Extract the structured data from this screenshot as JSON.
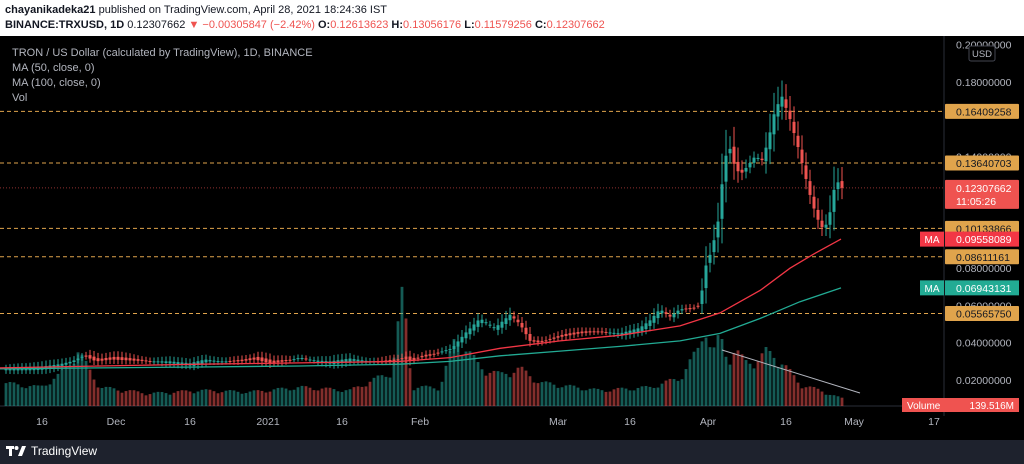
{
  "header": {
    "author": "chayanikadeka21",
    "published_text": "published on TradingView.com, April 28, 2021 18:24:36 IST",
    "symbol": "BINANCE:TRXUSD, 1D",
    "last": "0.12307662",
    "change_arrow": "▼",
    "change": "−0.00305847 (−2.42%)",
    "o_label": "O:",
    "o": "0.12613623",
    "h_label": "H:",
    "h": "0.13056176",
    "l_label": "L:",
    "l": "0.11579256",
    "c_label": "C:",
    "c": "0.12307662"
  },
  "legend": {
    "title": "TRON / US Dollar (calculated by TradingView), 1D, BINANCE",
    "ma50": "MA (50, close, 0)",
    "ma100": "MA (100, close, 0)",
    "vol": "Vol"
  },
  "footer": {
    "brand": "TradingView",
    "logo_icon": "tradingview-logo-icon"
  },
  "colors": {
    "up": "#26a69a",
    "down": "#ef5350",
    "ma50": "#f23645",
    "ma100": "#22ab94",
    "hline": "#e0a44c",
    "bg": "#000000",
    "axis_text": "#b2b5be",
    "trendline": "#b2b5be"
  },
  "chart_data": {
    "type": "candlestick",
    "price_scale": {
      "currency": "USD",
      "ticks": [
        "0.20000000",
        "0.18000000",
        "0.14000000",
        "0.10000000",
        "0.08000000",
        "0.06000000",
        "0.04000000",
        "0.02000000"
      ],
      "tick_values": [
        0.2,
        0.18,
        0.14,
        0.1,
        0.08,
        0.06,
        0.04,
        0.02
      ],
      "range": [
        0.0,
        0.2
      ]
    },
    "time_axis": [
      "16",
      "Dec",
      "16",
      "2021",
      "16",
      "Feb",
      "Mar",
      "16",
      "Apr",
      "16",
      "May",
      "17"
    ],
    "horizontal_levels": [
      {
        "label": "0.16409258",
        "value": 0.16409258
      },
      {
        "label": "0.13640703",
        "value": 0.13640703
      },
      {
        "label": "0.10133866",
        "value": 0.10133866
      },
      {
        "label": "0.08611161",
        "value": 0.08611161
      },
      {
        "label": "0.05565750",
        "value": 0.0556575
      }
    ],
    "last_price": {
      "label": "0.12307662",
      "countdown": "11:05:26",
      "value": 0.12307662
    },
    "ma_badges": [
      {
        "name": "MA",
        "label": "0.09558089",
        "value": 0.09558089
      },
      {
        "name": "MA",
        "label": "0.06943131",
        "value": 0.06943131
      }
    ],
    "volume_badge": {
      "name": "Volume",
      "label": "139.516M"
    },
    "close_anchors": [
      [
        0,
        0.0255
      ],
      [
        20,
        0.0265
      ],
      [
        40,
        0.027
      ],
      [
        60,
        0.0285
      ],
      [
        72,
        0.03
      ],
      [
        84,
        0.033
      ],
      [
        96,
        0.03
      ],
      [
        112,
        0.031
      ],
      [
        130,
        0.0305
      ],
      [
        150,
        0.03
      ],
      [
        170,
        0.03
      ],
      [
        190,
        0.029
      ],
      [
        205,
        0.031
      ],
      [
        220,
        0.03
      ],
      [
        240,
        0.03
      ],
      [
        255,
        0.031
      ],
      [
        270,
        0.029
      ],
      [
        285,
        0.03
      ],
      [
        300,
        0.032
      ],
      [
        315,
        0.0305
      ],
      [
        330,
        0.03
      ],
      [
        350,
        0.0315
      ],
      [
        370,
        0.03
      ],
      [
        385,
        0.03
      ],
      [
        395,
        0.03
      ],
      [
        404,
        0.0315
      ],
      [
        412,
        0.03
      ],
      [
        420,
        0.032
      ],
      [
        430,
        0.033
      ],
      [
        440,
        0.035
      ],
      [
        452,
        0.037
      ],
      [
        465,
        0.045
      ],
      [
        480,
        0.053
      ],
      [
        495,
        0.048
      ],
      [
        510,
        0.055
      ],
      [
        520,
        0.05
      ],
      [
        530,
        0.041
      ],
      [
        540,
        0.04
      ],
      [
        560,
        0.043
      ],
      [
        580,
        0.045
      ],
      [
        600,
        0.046
      ],
      [
        620,
        0.045
      ],
      [
        640,
        0.048
      ],
      [
        650,
        0.052
      ],
      [
        660,
        0.058
      ],
      [
        670,
        0.054
      ],
      [
        680,
        0.058
      ],
      [
        690,
        0.058
      ],
      [
        700,
        0.06
      ],
      [
        705,
        0.08
      ],
      [
        712,
        0.09
      ],
      [
        718,
        0.105
      ],
      [
        722,
        0.125
      ],
      [
        728,
        0.148
      ],
      [
        734,
        0.136
      ],
      [
        740,
        0.13
      ],
      [
        748,
        0.135
      ],
      [
        755,
        0.14
      ],
      [
        762,
        0.138
      ],
      [
        768,
        0.148
      ],
      [
        775,
        0.165
      ],
      [
        782,
        0.172
      ],
      [
        790,
        0.16
      ],
      [
        798,
        0.145
      ],
      [
        805,
        0.13
      ],
      [
        812,
        0.115
      ],
      [
        818,
        0.106
      ],
      [
        824,
        0.1
      ],
      [
        830,
        0.11
      ],
      [
        836,
        0.128
      ],
      [
        841,
        0.1231
      ]
    ],
    "ma50_anchors": [
      [
        0,
        0.0265
      ],
      [
        100,
        0.0275
      ],
      [
        200,
        0.0285
      ],
      [
        300,
        0.0292
      ],
      [
        400,
        0.03
      ],
      [
        450,
        0.032
      ],
      [
        500,
        0.037
      ],
      [
        560,
        0.041
      ],
      [
        620,
        0.044
      ],
      [
        680,
        0.049
      ],
      [
        720,
        0.056
      ],
      [
        760,
        0.068
      ],
      [
        790,
        0.08
      ],
      [
        815,
        0.088
      ],
      [
        841,
        0.0956
      ]
    ],
    "ma100_anchors": [
      [
        0,
        0.026
      ],
      [
        100,
        0.0265
      ],
      [
        200,
        0.027
      ],
      [
        300,
        0.0275
      ],
      [
        400,
        0.0285
      ],
      [
        450,
        0.03
      ],
      [
        500,
        0.033
      ],
      [
        560,
        0.0355
      ],
      [
        620,
        0.038
      ],
      [
        680,
        0.041
      ],
      [
        720,
        0.045
      ],
      [
        760,
        0.053
      ],
      [
        800,
        0.062
      ],
      [
        841,
        0.0694
      ]
    ],
    "volume_peaks": [
      [
        0,
        0.015
      ],
      [
        40,
        0.012
      ],
      [
        60,
        0.02
      ],
      [
        78,
        0.035
      ],
      [
        100,
        0.012
      ],
      [
        150,
        0.008
      ],
      [
        200,
        0.01
      ],
      [
        250,
        0.009
      ],
      [
        300,
        0.012
      ],
      [
        350,
        0.01
      ],
      [
        392,
        0.022
      ],
      [
        403,
        0.075
      ],
      [
        412,
        0.012
      ],
      [
        440,
        0.012
      ],
      [
        456,
        0.045
      ],
      [
        480,
        0.025
      ],
      [
        500,
        0.02
      ],
      [
        520,
        0.024
      ],
      [
        540,
        0.015
      ],
      [
        600,
        0.01
      ],
      [
        650,
        0.012
      ],
      [
        680,
        0.018
      ],
      [
        700,
        0.038
      ],
      [
        705,
        0.055
      ],
      [
        712,
        0.032
      ],
      [
        720,
        0.045
      ],
      [
        728,
        0.03
      ],
      [
        735,
        0.036
      ],
      [
        745,
        0.028
      ],
      [
        760,
        0.03
      ],
      [
        765,
        0.035
      ],
      [
        775,
        0.032
      ],
      [
        782,
        0.028
      ],
      [
        800,
        0.014
      ],
      [
        820,
        0.01
      ],
      [
        841,
        0.005
      ]
    ]
  }
}
